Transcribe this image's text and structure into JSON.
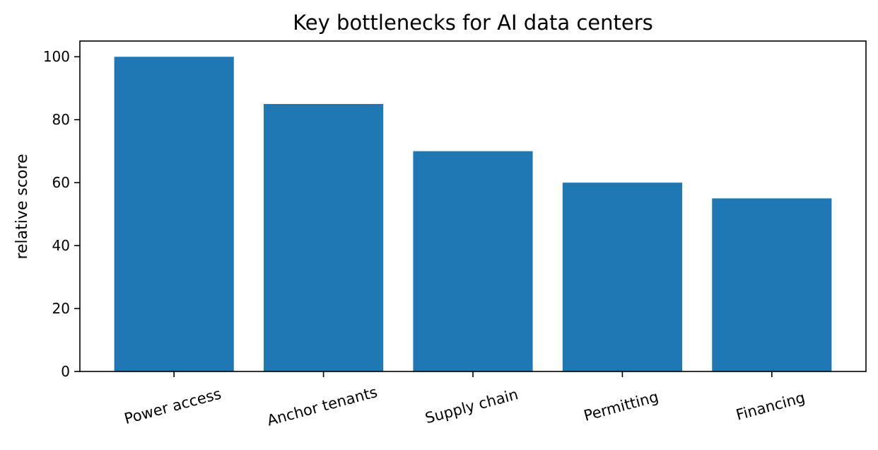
{
  "chart_data": {
    "type": "bar",
    "title": "Key bottlenecks for AI data centers",
    "xlabel": "",
    "ylabel": "relative score",
    "categories": [
      "Power access",
      "Anchor tenants",
      "Supply chain",
      "Permitting",
      "Financing"
    ],
    "values": [
      100,
      85,
      70,
      60,
      55
    ],
    "ylim": [
      0,
      105
    ],
    "yticks": [
      0,
      20,
      40,
      60,
      80,
      100
    ],
    "x_tick_rotation_deg": -15,
    "grid": false,
    "legend": "none",
    "bar_color": "#1f77b4"
  }
}
